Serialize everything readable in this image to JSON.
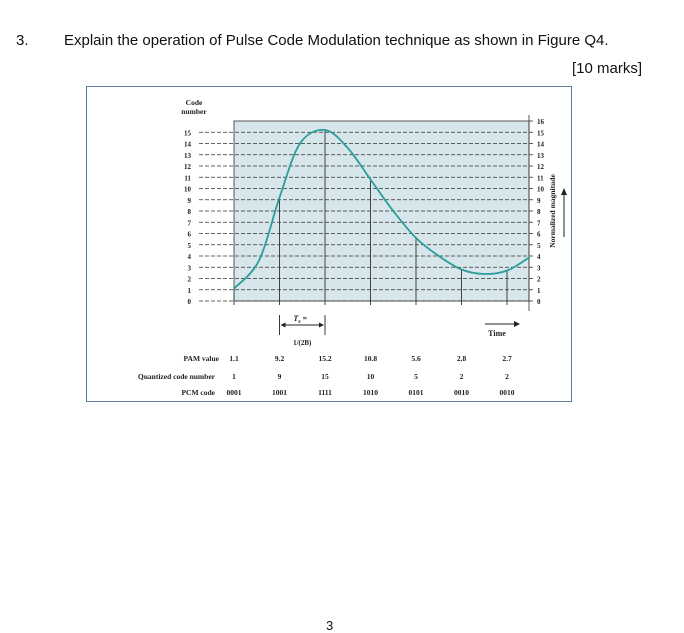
{
  "question": {
    "number": "3.",
    "text": "Explain the operation of Pulse Code Modulation technique as shown in Figure Q4.",
    "marks": "[10 marks]"
  },
  "figure": {
    "left_axis_title_1": "Code",
    "left_axis_title_2": "number",
    "right_axis_title": "Normalized magnitude",
    "left_ticks": [
      "15",
      "14",
      "13",
      "12",
      "11",
      "10",
      "9",
      "8",
      "7",
      "6",
      "5",
      "4",
      "3",
      "2",
      "1",
      "0"
    ],
    "right_ticks": [
      "16",
      "15",
      "14",
      "13",
      "12",
      "11",
      "10",
      "9",
      "8",
      "7",
      "6",
      "5",
      "4",
      "3",
      "2",
      "1",
      "0"
    ],
    "ts_label": "T",
    "ts_sub": "s",
    "ts_eq": " =",
    "ts_value": "1/(2B)",
    "time_label": "Time",
    "row_labels": {
      "pam": "PAM value",
      "quantized": "Quantized code number",
      "pcm": "PCM code"
    },
    "samples": [
      {
        "t": 0,
        "pam": "1.1",
        "q": "1",
        "pcm": "0001"
      },
      {
        "t": 1,
        "pam": "9.2",
        "q": "9",
        "pcm": "1001"
      },
      {
        "t": 2,
        "pam": "15.2",
        "q": "15",
        "pcm": "1111"
      },
      {
        "t": 3,
        "pam": "10.8",
        "q": "10",
        "pcm": "1010"
      },
      {
        "t": 4,
        "pam": "5.6",
        "q": "5",
        "pcm": "0101"
      },
      {
        "t": 5,
        "pam": "2.8",
        "q": "2",
        "pcm": "0010"
      },
      {
        "t": 6,
        "pam": "2.7",
        "q": "2",
        "pcm": "0010"
      }
    ],
    "colors": {
      "grid_bg": "#d6e6ea",
      "curve": "#2a9d9a",
      "border": "#5a7fa8"
    }
  },
  "page_number": "3"
}
